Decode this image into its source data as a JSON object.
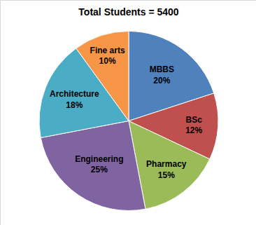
{
  "chart_data": {
    "type": "pie",
    "title": "Total Students = 5400",
    "categories": [
      "MBBS",
      "BSc",
      "Pharmacy",
      "Engineering",
      "Architecture",
      "Fine arts"
    ],
    "values": [
      20,
      12,
      15,
      25,
      18,
      10
    ],
    "value_labels": [
      "20%",
      "12%",
      "15%",
      "25%",
      "18%",
      "10%"
    ],
    "colors": [
      "#4f81bd",
      "#c0504d",
      "#9bbb59",
      "#8064a2",
      "#4bacc6",
      "#f79646"
    ],
    "data_labels": true
  }
}
